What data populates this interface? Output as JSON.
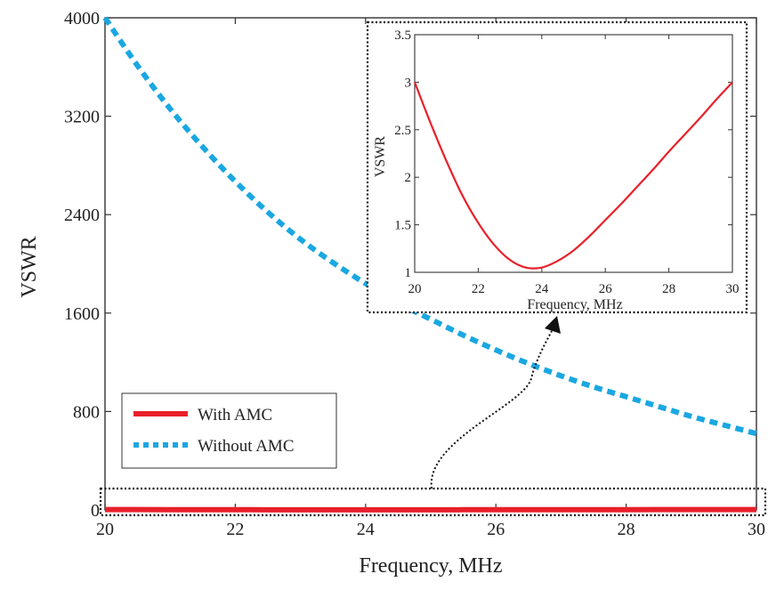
{
  "chart_data": [
    {
      "type": "line",
      "xlabel": "Frequency, MHz",
      "ylabel": "VSWR",
      "xlim": [
        20,
        30
      ],
      "ylim": [
        0,
        4000
      ],
      "xticks": [
        "20",
        "22",
        "24",
        "26",
        "28",
        "30"
      ],
      "yticks": [
        "0",
        "800",
        "1600",
        "2400",
        "3200",
        "4000"
      ],
      "legend_position": "bottom-left",
      "grid": false,
      "x": [
        20,
        20.5,
        21,
        21.5,
        22,
        22.5,
        23,
        23.5,
        24,
        24.5,
        25,
        25.5,
        26,
        26.5,
        27,
        27.5,
        28,
        28.5,
        29,
        29.5,
        30
      ],
      "series": [
        {
          "name": "With AMC",
          "color": "#e8202a",
          "style": "solid",
          "values": [
            3.0,
            2.57,
            2.17,
            1.81,
            1.52,
            1.29,
            1.13,
            1.05,
            1.05,
            1.12,
            1.23,
            1.38,
            1.55,
            1.72,
            1.9,
            2.08,
            2.27,
            2.45,
            2.63,
            2.82,
            3.0
          ]
        },
        {
          "name": "Without AMC",
          "color": "#1aa7e2",
          "style": "dotted",
          "values": [
            4000,
            3610,
            3260,
            2950,
            2670,
            2420,
            2200,
            2010,
            1840,
            1680,
            1550,
            1420,
            1300,
            1190,
            1090,
            1000,
            920,
            840,
            760,
            690,
            620
          ]
        }
      ]
    },
    {
      "type": "line",
      "xlabel": "Frequency, MHz",
      "ylabel": "VSWR",
      "xlim": [
        20,
        30
      ],
      "ylim": [
        1,
        3.5
      ],
      "xticks": [
        "20",
        "22",
        "24",
        "26",
        "28",
        "30"
      ],
      "yticks": [
        "1",
        "1.5",
        "2",
        "2.5",
        "3",
        "3.5"
      ],
      "grid": false,
      "x": [
        20,
        20.5,
        21,
        21.5,
        22,
        22.5,
        23,
        23.5,
        24,
        24.5,
        25,
        25.5,
        26,
        26.5,
        27,
        27.5,
        28,
        28.5,
        29,
        29.5,
        30
      ],
      "series": [
        {
          "color": "#e8202a",
          "style": "solid",
          "values": [
            3.0,
            2.57,
            2.17,
            1.81,
            1.52,
            1.29,
            1.13,
            1.05,
            1.05,
            1.12,
            1.23,
            1.38,
            1.55,
            1.72,
            1.9,
            2.08,
            2.27,
            2.45,
            2.63,
            2.82,
            3.0
          ]
        }
      ]
    }
  ]
}
